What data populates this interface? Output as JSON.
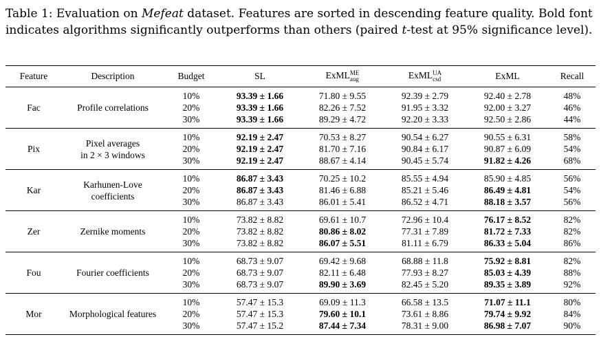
{
  "caption": {
    "prefix": "Table 1: Evaluation on ",
    "dataset": "Mefeat",
    "middle": " dataset. Features are sorted in descending feature quality. Bold font indicates algorithms significantly outperforms than others (paired ",
    "ttest": "t",
    "suffix": "-test at 95% significance level)."
  },
  "headers": {
    "feature": "Feature",
    "description": "Description",
    "budget": "Budget",
    "sl": "SL",
    "exml_aug_base": "ExML",
    "exml_aug_sup": "ME",
    "exml_aug_sub": "aug",
    "exml_csd_base": "ExML",
    "exml_csd_sup": "UA",
    "exml_csd_sub": "csd",
    "exml": "ExML",
    "recall": "Recall"
  },
  "rows": [
    {
      "feature": "Fac",
      "description": [
        "Profile correlations"
      ],
      "budget": [
        "10%",
        "20%",
        "30%"
      ],
      "sl": [
        {
          "v": "93.39 ± 1.66",
          "b": true
        },
        {
          "v": "93.39 ± 1.66",
          "b": true
        },
        {
          "v": "93.39 ± 1.66",
          "b": true
        }
      ],
      "aug": [
        {
          "v": "71.80 ± 9.55",
          "b": false
        },
        {
          "v": "82.26 ± 7.52",
          "b": false
        },
        {
          "v": "89.29 ± 4.72",
          "b": false
        }
      ],
      "csd": [
        {
          "v": "92.39 ± 2.79",
          "b": false
        },
        {
          "v": "91.95 ± 3.32",
          "b": false
        },
        {
          "v": "92.20 ± 3.33",
          "b": false
        }
      ],
      "exml": [
        {
          "v": "92.40 ± 2.78",
          "b": false
        },
        {
          "v": "92.00 ± 3.27",
          "b": false
        },
        {
          "v": "92.50 ± 2.86",
          "b": false
        }
      ],
      "recall": [
        "48%",
        "46%",
        "44%"
      ]
    },
    {
      "feature": "Pix",
      "description": [
        "Pixel averages",
        "in 2 × 3 windows"
      ],
      "budget": [
        "10%",
        "20%",
        "30%"
      ],
      "sl": [
        {
          "v": "92.19 ± 2.47",
          "b": true
        },
        {
          "v": "92.19 ± 2.47",
          "b": true
        },
        {
          "v": "92.19 ± 2.47",
          "b": true
        }
      ],
      "aug": [
        {
          "v": "70.53 ± 8.27",
          "b": false
        },
        {
          "v": "81.70 ± 7.16",
          "b": false
        },
        {
          "v": "88.67 ± 4.14",
          "b": false
        }
      ],
      "csd": [
        {
          "v": "90.54 ± 6.27",
          "b": false
        },
        {
          "v": "90.84 ± 6.17",
          "b": false
        },
        {
          "v": "90.45 ± 5.74",
          "b": false
        }
      ],
      "exml": [
        {
          "v": "90.55 ± 6.31",
          "b": false
        },
        {
          "v": "90.87 ± 6.09",
          "b": false
        },
        {
          "v": "91.82 ± 4.26",
          "b": true
        }
      ],
      "recall": [
        "58%",
        "54%",
        "68%"
      ]
    },
    {
      "feature": "Kar",
      "description": [
        "Karhunen-Love",
        "coefficients"
      ],
      "budget": [
        "10%",
        "20%",
        "30%"
      ],
      "sl": [
        {
          "v": "86.87 ± 3.43",
          "b": true
        },
        {
          "v": "86.87 ± 3.43",
          "b": true
        },
        {
          "v": "86.87 ± 3.43",
          "b": false
        }
      ],
      "aug": [
        {
          "v": "70.25 ± 10.2",
          "b": false
        },
        {
          "v": "81.46 ± 6.88",
          "b": false
        },
        {
          "v": "86.01 ± 5.41",
          "b": false
        }
      ],
      "csd": [
        {
          "v": "85.55 ± 4.94",
          "b": false
        },
        {
          "v": "85.21 ± 5.46",
          "b": false
        },
        {
          "v": "86.52 ± 4.71",
          "b": false
        }
      ],
      "exml": [
        {
          "v": "85.90 ± 4.85",
          "b": false
        },
        {
          "v": "86.49 ± 4.81",
          "b": true
        },
        {
          "v": "88.18 ± 3.57",
          "b": true
        }
      ],
      "recall": [
        "56%",
        "54%",
        "56%"
      ]
    },
    {
      "feature": "Zer",
      "description": [
        "Zernike moments"
      ],
      "budget": [
        "10%",
        "20%",
        "30%"
      ],
      "sl": [
        {
          "v": "73.82 ± 8.82",
          "b": false
        },
        {
          "v": "73.82 ± 8.82",
          "b": false
        },
        {
          "v": "73.82 ± 8.82",
          "b": false
        }
      ],
      "aug": [
        {
          "v": "69.61 ± 10.7",
          "b": false
        },
        {
          "v": "80.86 ± 8.02",
          "b": true
        },
        {
          "v": "86.07 ± 5.51",
          "b": true
        }
      ],
      "csd": [
        {
          "v": "72.96 ± 10.4",
          "b": false
        },
        {
          "v": "77.31 ± 7.89",
          "b": false
        },
        {
          "v": "81.11 ± 6.79",
          "b": false
        }
      ],
      "exml": [
        {
          "v": "76.17 ± 8.52",
          "b": true
        },
        {
          "v": "81.72 ± 7.33",
          "b": true
        },
        {
          "v": "86.33 ± 5.04",
          "b": true
        }
      ],
      "recall": [
        "82%",
        "82%",
        "86%"
      ]
    },
    {
      "feature": "Fou",
      "description": [
        "Fourier coefficients"
      ],
      "budget": [
        "10%",
        "20%",
        "30%"
      ],
      "sl": [
        {
          "v": "68.73 ± 9.07",
          "b": false
        },
        {
          "v": "68.73 ± 9.07",
          "b": false
        },
        {
          "v": "68.73 ± 9.07",
          "b": false
        }
      ],
      "aug": [
        {
          "v": "69.42 ± 9.68",
          "b": false
        },
        {
          "v": "82.11 ± 6.48",
          "b": false
        },
        {
          "v": "89.90 ± 3.69",
          "b": true
        }
      ],
      "csd": [
        {
          "v": "68.88 ± 11.8",
          "b": false
        },
        {
          "v": "77.93 ± 8.27",
          "b": false
        },
        {
          "v": "82.45 ± 5.20",
          "b": false
        }
      ],
      "exml": [
        {
          "v": "75.92 ± 8.81",
          "b": true
        },
        {
          "v": "85.03 ± 4.39",
          "b": true
        },
        {
          "v": "89.35 ± 3.89",
          "b": true
        }
      ],
      "recall": [
        "82%",
        "88%",
        "92%"
      ]
    },
    {
      "feature": "Mor",
      "description": [
        "Morphological features"
      ],
      "budget": [
        "10%",
        "20%",
        "30%"
      ],
      "sl": [
        {
          "v": "57.47 ± 15.3",
          "b": false
        },
        {
          "v": "57.47 ± 15.3",
          "b": false
        },
        {
          "v": "57.47 ± 15.2",
          "b": false
        }
      ],
      "aug": [
        {
          "v": "69.09 ± 11.3",
          "b": false
        },
        {
          "v": "79.60 ± 10.1",
          "b": true
        },
        {
          "v": "87.44 ± 7.34",
          "b": true
        }
      ],
      "csd": [
        {
          "v": "66.58 ± 13.5",
          "b": false
        },
        {
          "v": "73.61 ± 8.86",
          "b": false
        },
        {
          "v": "78.31 ± 9.00",
          "b": false
        }
      ],
      "exml": [
        {
          "v": "71.07 ± 11.1",
          "b": true
        },
        {
          "v": "79.74 ± 9.92",
          "b": true
        },
        {
          "v": "86.98 ± 7.07",
          "b": true
        }
      ],
      "recall": [
        "80%",
        "84%",
        "90%"
      ]
    }
  ]
}
